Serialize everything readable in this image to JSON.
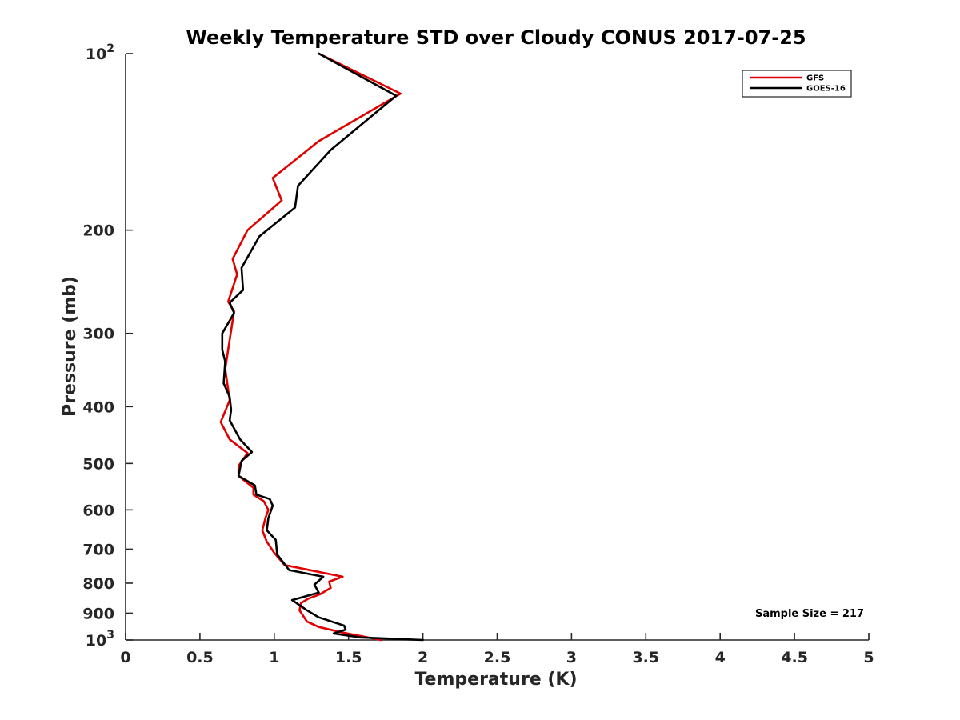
{
  "chart_data": {
    "type": "line",
    "title": "Weekly Temperature STD over Cloudy CONUS 2017-07-25",
    "xlabel": "Temperature (K)",
    "ylabel": "Pressure (mb)",
    "xlim": [
      0,
      5
    ],
    "ylim": [
      100,
      1000
    ],
    "y_scale": "log",
    "y_reversed": true,
    "grid": false,
    "legend_position": "top-right",
    "x_ticks": [
      {
        "value": 0,
        "label": "0"
      },
      {
        "value": 0.5,
        "label": "0.5"
      },
      {
        "value": 1,
        "label": "1"
      },
      {
        "value": 1.5,
        "label": "1.5"
      },
      {
        "value": 2,
        "label": "2"
      },
      {
        "value": 2.5,
        "label": "2.5"
      },
      {
        "value": 3,
        "label": "3"
      },
      {
        "value": 3.5,
        "label": "3.5"
      },
      {
        "value": 4,
        "label": "4"
      },
      {
        "value": 4.5,
        "label": "4.5"
      },
      {
        "value": 5,
        "label": "5"
      }
    ],
    "y_ticks": [
      {
        "value": 100,
        "base": "10",
        "exp": "2"
      },
      {
        "value": 200,
        "base": "200",
        "exp": ""
      },
      {
        "value": 300,
        "base": "300",
        "exp": ""
      },
      {
        "value": 400,
        "base": "400",
        "exp": ""
      },
      {
        "value": 500,
        "base": "500",
        "exp": ""
      },
      {
        "value": 600,
        "base": "600",
        "exp": ""
      },
      {
        "value": 700,
        "base": "700",
        "exp": ""
      },
      {
        "value": 800,
        "base": "800",
        "exp": ""
      },
      {
        "value": 900,
        "base": "900",
        "exp": ""
      },
      {
        "value": 1000,
        "base": "10",
        "exp": "3"
      }
    ],
    "annotation": "Sample Size = 217",
    "series": [
      {
        "name": "GFS",
        "color": "#e00000",
        "points": [
          [
            1.3,
            100
          ],
          [
            1.85,
            117
          ],
          [
            1.3,
            141
          ],
          [
            0.99,
            163
          ],
          [
            1.05,
            178
          ],
          [
            0.82,
            200
          ],
          [
            0.72,
            224
          ],
          [
            0.75,
            238
          ],
          [
            0.69,
            265
          ],
          [
            0.73,
            275
          ],
          [
            0.67,
            345
          ],
          [
            0.7,
            390
          ],
          [
            0.64,
            425
          ],
          [
            0.7,
            455
          ],
          [
            0.82,
            480
          ],
          [
            0.76,
            505
          ],
          [
            0.76,
            525
          ],
          [
            0.86,
            550
          ],
          [
            0.86,
            565
          ],
          [
            0.93,
            580
          ],
          [
            0.96,
            600
          ],
          [
            0.94,
            620
          ],
          [
            0.92,
            650
          ],
          [
            0.95,
            680
          ],
          [
            1.0,
            710
          ],
          [
            1.07,
            745
          ],
          [
            1.46,
            780
          ],
          [
            1.37,
            795
          ],
          [
            1.38,
            815
          ],
          [
            1.31,
            835
          ],
          [
            1.23,
            850
          ],
          [
            1.18,
            865
          ],
          [
            1.17,
            890
          ],
          [
            1.22,
            930
          ],
          [
            1.3,
            950
          ],
          [
            1.45,
            970
          ],
          [
            1.72,
            1000
          ]
        ]
      },
      {
        "name": "GOES-16",
        "color": "#000000",
        "points": [
          [
            1.3,
            100
          ],
          [
            1.82,
            118
          ],
          [
            1.38,
            146
          ],
          [
            1.16,
            168
          ],
          [
            1.14,
            183
          ],
          [
            0.9,
            205
          ],
          [
            0.78,
            232
          ],
          [
            0.79,
            253
          ],
          [
            0.7,
            266
          ],
          [
            0.73,
            277
          ],
          [
            0.65,
            300
          ],
          [
            0.65,
            320
          ],
          [
            0.67,
            335
          ],
          [
            0.66,
            365
          ],
          [
            0.7,
            385
          ],
          [
            0.71,
            405
          ],
          [
            0.7,
            422
          ],
          [
            0.77,
            455
          ],
          [
            0.85,
            478
          ],
          [
            0.78,
            495
          ],
          [
            0.76,
            525
          ],
          [
            0.87,
            545
          ],
          [
            0.88,
            565
          ],
          [
            0.97,
            575
          ],
          [
            0.99,
            590
          ],
          [
            0.96,
            620
          ],
          [
            0.95,
            650
          ],
          [
            1.01,
            675
          ],
          [
            1.02,
            715
          ],
          [
            1.1,
            760
          ],
          [
            1.33,
            780
          ],
          [
            1.27,
            805
          ],
          [
            1.3,
            830
          ],
          [
            1.12,
            855
          ],
          [
            1.22,
            890
          ],
          [
            1.3,
            915
          ],
          [
            1.47,
            945
          ],
          [
            1.48,
            960
          ],
          [
            1.4,
            975
          ],
          [
            1.58,
            990
          ],
          [
            2.0,
            1000
          ]
        ]
      }
    ]
  }
}
